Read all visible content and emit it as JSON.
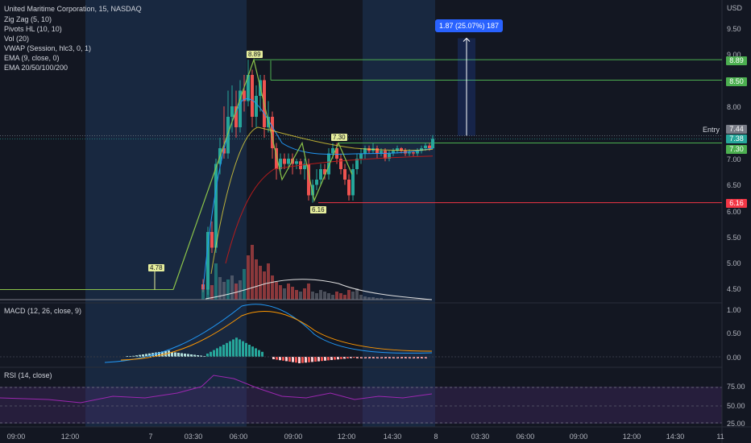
{
  "header": {
    "symbol": "United Maritime Corporation, 15, NASDAQ",
    "indicators": [
      "Zig Zag (5, 10)",
      "Pivots HL (10, 10)",
      "Vol (20)",
      "VWAP (Session, hlc3, 0, 1)",
      "EMA (9, close, 0)",
      "EMA 20/50/100/200"
    ]
  },
  "panes": {
    "macd_label": "MACD (12, 26, close, 9)",
    "rsi_label": "RSI (14, close)"
  },
  "price_axis": {
    "currency": "USD",
    "ticks": [
      "9.50",
      "9.00",
      "8.50",
      "8.00",
      "7.50",
      "7.00",
      "6.50",
      "6.00",
      "5.50",
      "5.00",
      "4.50"
    ]
  },
  "macd_axis": {
    "ticks": [
      "1.00",
      "0.50",
      "0.00"
    ]
  },
  "rsi_axis": {
    "ticks": [
      "75.00",
      "50.00",
      "25.00"
    ]
  },
  "time_axis": {
    "ticks": [
      "09:00",
      "12:00",
      "7",
      "03:30",
      "06:00",
      "09:00",
      "12:00",
      "14:30",
      "8",
      "03:30",
      "06:00",
      "09:00",
      "12:00",
      "14:30",
      "11"
    ]
  },
  "price_labels": {
    "top_target": "8.89",
    "second_target": "8.50",
    "entry": "7.44",
    "entry_text": "Entry",
    "last": "7.38",
    "level": "7.30",
    "stop": "6.16"
  },
  "measure_badge": "1.87 (25.07%) 187",
  "pivots": {
    "high": "8.89",
    "mid": "7.30",
    "low": "6.16",
    "early": "4.78"
  },
  "colors": {
    "bg": "#131722",
    "up": "#26a69a",
    "down": "#ef5350",
    "green_line": "#4caf50",
    "red_line": "#f23645",
    "session": "#1e3f66"
  }
}
